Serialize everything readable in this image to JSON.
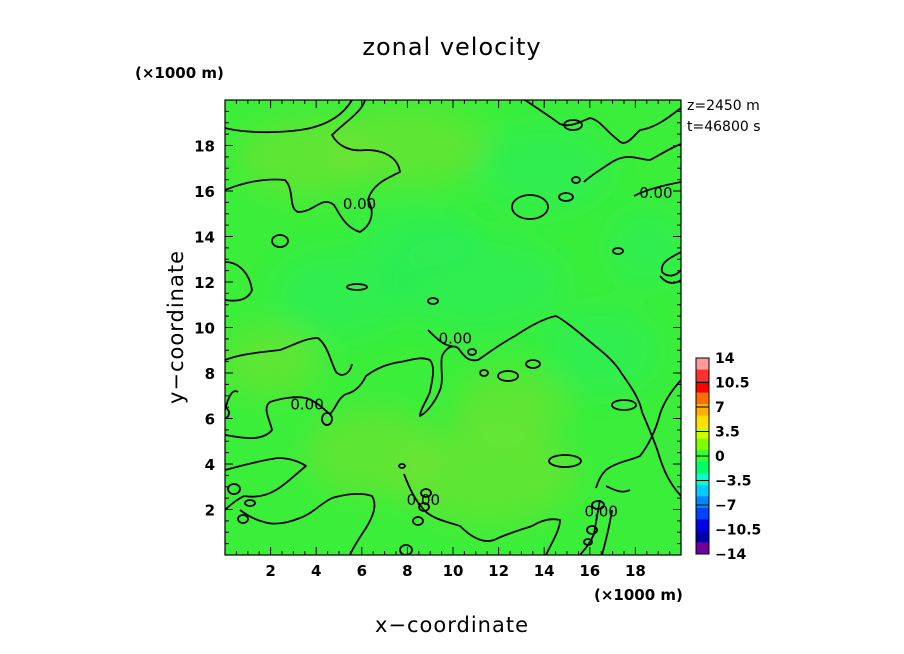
{
  "chart_data": {
    "type": "heatmap",
    "title": "zonal velocity",
    "xlabel": "x−coordinate",
    "ylabel": "y−coordinate",
    "x_unit": "(×1000 m)",
    "y_unit": "(×1000 m)",
    "xlim": [
      0,
      20
    ],
    "ylim": [
      0,
      20
    ],
    "x_ticks": [
      2,
      4,
      6,
      8,
      10,
      12,
      14,
      16,
      18
    ],
    "y_ticks": [
      2,
      4,
      6,
      8,
      10,
      12,
      14,
      16,
      18
    ],
    "annotations": [
      "z=2450 m",
      "t=46800 s"
    ],
    "contour_labels": [
      {
        "text": "0.00",
        "x": 5.9,
        "y": 15.4
      },
      {
        "text": "0.00",
        "x": 18.9,
        "y": 15.9
      },
      {
        "text": "0.00",
        "x": 10.1,
        "y": 9.5
      },
      {
        "text": "0.00",
        "x": 3.6,
        "y": 6.6
      },
      {
        "text": "0.00",
        "x": 8.7,
        "y": 2.4
      },
      {
        "text": "0.00",
        "x": 16.5,
        "y": 1.9
      }
    ],
    "colorbar": {
      "levels": [
        14,
        10.5,
        7,
        3.5,
        0,
        -3.5,
        -7,
        -10.5,
        -14
      ],
      "tick_labels": [
        "14",
        "10.5",
        "7",
        "3.5",
        "0",
        "−3.5",
        "−7",
        "−10.5",
        "−14"
      ],
      "colors": [
        "#ff9a9a",
        "#ff3030",
        "#ff0000",
        "#ff7000",
        "#ffb000",
        "#ffe000",
        "#ccff00",
        "#80ff00",
        "#33ff33",
        "#00ff66",
        "#00ffcc",
        "#00ccff",
        "#0088ff",
        "#0044ff",
        "#0000ee",
        "#0000aa",
        "#7000a0"
      ]
    },
    "field_color": "#3aee3a",
    "field_light_color": "#7ae030",
    "field_cool_color": "#22ee66"
  }
}
